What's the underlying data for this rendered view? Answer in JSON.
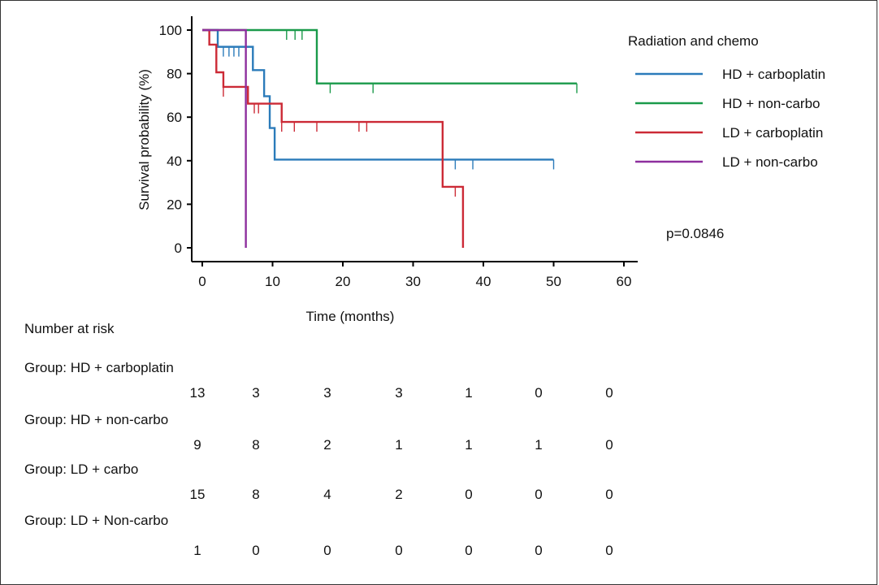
{
  "chart_data": {
    "type": "line",
    "subtype": "kaplan-meier",
    "xlabel": "Time (months)",
    "ylabel": "Survival probability (%)",
    "xlim": [
      -1,
      61
    ],
    "ylim": [
      -5,
      105
    ],
    "xticks": [
      0,
      10,
      20,
      30,
      40,
      50,
      60
    ],
    "yticks": [
      0,
      20,
      40,
      60,
      80,
      100
    ],
    "grid": false,
    "legend_title": "Radiation and chemo",
    "legend_position": "top-right",
    "annotation": "p=0.0846",
    "series": [
      {
        "name": "HD + carboplatin",
        "color": "#2b7bba",
        "steps": [
          [
            0,
            100
          ],
          [
            2.2,
            92.3
          ],
          [
            7.2,
            81.6
          ],
          [
            8.8,
            69.6
          ],
          [
            9.6,
            55
          ],
          [
            10.3,
            40.5
          ],
          [
            50,
            40.5
          ]
        ],
        "censor": [
          [
            3,
            92.3
          ],
          [
            3.8,
            92.3
          ],
          [
            4.5,
            92.3
          ],
          [
            5.2,
            92.3
          ],
          [
            36,
            40.5
          ],
          [
            38.5,
            40.5
          ],
          [
            50,
            40.5
          ]
        ]
      },
      {
        "name": "HD + non-carbo",
        "color": "#1a9a4a",
        "steps": [
          [
            0,
            100
          ],
          [
            16.3,
            75.5
          ],
          [
            53.3,
            75.5
          ]
        ],
        "censor": [
          [
            12,
            100
          ],
          [
            13.2,
            100
          ],
          [
            14.2,
            100
          ],
          [
            18.2,
            75.5
          ],
          [
            24.3,
            75.5
          ],
          [
            53.3,
            75.5
          ]
        ]
      },
      {
        "name": "LD + carboplatin",
        "color": "#cc2a36",
        "steps": [
          [
            0,
            100
          ],
          [
            1,
            93.3
          ],
          [
            2,
            80.6
          ],
          [
            3,
            73.9
          ],
          [
            6.5,
            66.2
          ],
          [
            11.3,
            57.8
          ],
          [
            34.2,
            28
          ],
          [
            37.1,
            0
          ]
        ],
        "censor": [
          [
            3,
            73.9
          ],
          [
            7.4,
            66.2
          ],
          [
            8,
            66.2
          ],
          [
            11.3,
            57.8
          ],
          [
            13.1,
            57.8
          ],
          [
            16.3,
            57.8
          ],
          [
            22.3,
            57.8
          ],
          [
            23.4,
            57.8
          ],
          [
            36,
            28
          ]
        ]
      },
      {
        "name": "LD + non-carbo",
        "color": "#8e2f9e",
        "steps": [
          [
            0,
            100
          ],
          [
            6.2,
            0
          ]
        ],
        "censor": []
      }
    ]
  },
  "risk_table": {
    "title": "Number at risk",
    "groups": [
      {
        "label": "Group: HD + carboplatin",
        "counts": [
          "13",
          "3",
          "3",
          "3",
          "1",
          "0",
          "0"
        ]
      },
      {
        "label": "Group: HD + non-carbo",
        "counts": [
          "9",
          "8",
          "2",
          "1",
          "1",
          "1",
          "0"
        ]
      },
      {
        "label": "Group: LD + carbo",
        "counts": [
          "15",
          "8",
          "4",
          "2",
          "0",
          "0",
          "0"
        ]
      },
      {
        "label": "Group: LD + Non-carbo",
        "counts": [
          "1",
          "0",
          "0",
          "0",
          "0",
          "0",
          "0"
        ]
      }
    ]
  }
}
